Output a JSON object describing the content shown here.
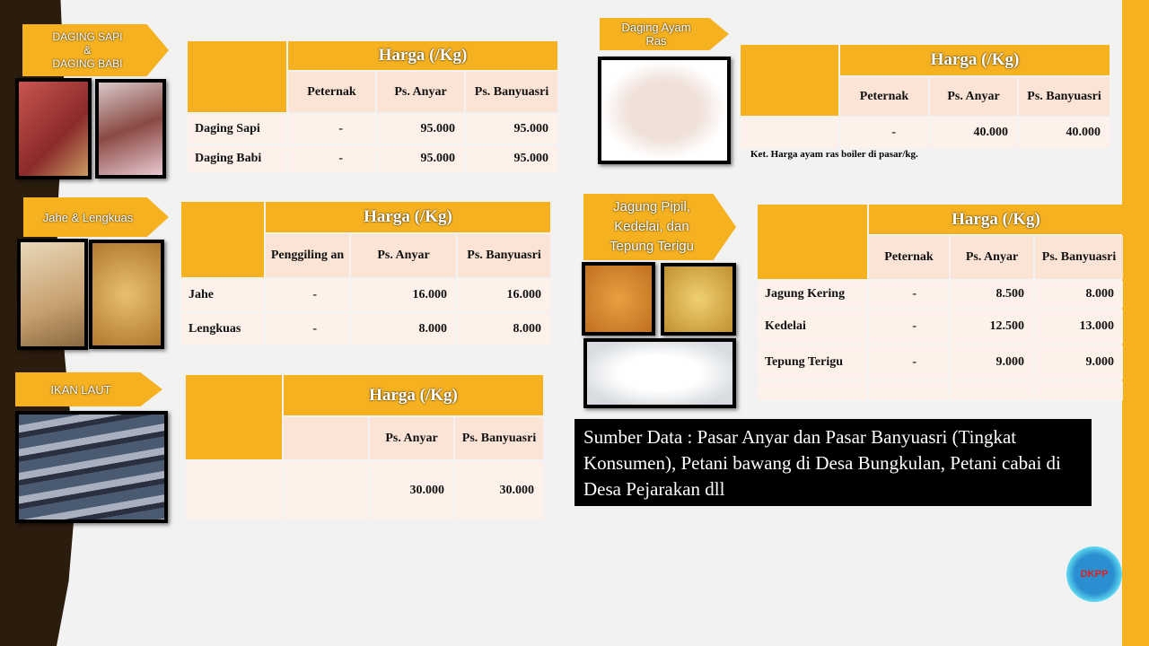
{
  "colors": {
    "accent": "#f5b120",
    "header_sub": "#fbe4d5",
    "row": "#fdf1ea",
    "dark": "#2b1d0e"
  },
  "labels": {
    "sapi_babi": "DAGING SAPI\n&\nDAGING BABI",
    "ayam": "Daging Ayam\nRas",
    "jahe": "Jahe & Lengkuas",
    "jagung": "Jagung Pipil,\nKedelai, dan\nTepung Terigu",
    "ikan": "IKAN LAUT"
  },
  "tables": {
    "sapi": {
      "harga": "Harga (/Kg)",
      "cols": [
        "Peternak",
        "Ps. Anyar",
        "Ps. Banyuasri"
      ],
      "rows": [
        [
          "Daging Sapi",
          "-",
          "95.000",
          "95.000"
        ],
        [
          "Daging Babi",
          "-",
          "95.000",
          "95.000"
        ]
      ]
    },
    "jahe": {
      "harga": "Harga (/Kg)",
      "cols": [
        "Penggiling an",
        "Ps. Anyar",
        "Ps. Banyuasri"
      ],
      "rows": [
        [
          "Jahe",
          "-",
          "16.000",
          "16.000"
        ],
        [
          "Lengkuas",
          "-",
          "8.000",
          "8.000"
        ]
      ]
    },
    "ikan": {
      "harga": "Harga (/Kg)",
      "cols": [
        "",
        "Ps. Anyar",
        "Ps. Banyuasri"
      ],
      "rows": [
        [
          "",
          "",
          "30.000",
          "30.000"
        ]
      ]
    },
    "ayam": {
      "harga": "Harga (/Kg)",
      "cols": [
        "Peternak",
        "Ps. Anyar",
        "Ps. Banyuasri"
      ],
      "rows": [
        [
          "",
          "-",
          "40.000",
          "40.000"
        ]
      ]
    },
    "jagung": {
      "harga": "Harga (/Kg)",
      "cols": [
        "Peternak",
        "Ps. Anyar",
        "Ps. Banyuasri"
      ],
      "rows": [
        [
          "Jagung Kering",
          "-",
          "8.500",
          "8.000"
        ],
        [
          "Kedelai",
          "-",
          "12.500",
          "13.000"
        ],
        [
          "Tepung Terigu",
          "-",
          "9.000",
          "9.000"
        ]
      ]
    }
  },
  "ayam_note": "Ket. Harga ayam ras boiler di pasar/kg.",
  "source": "Sumber Data : Pasar Anyar dan Pasar Banyuasri (Tingkat Konsumen), Petani bawang di Desa Bungkulan, Petani cabai di Desa Pejarakan dll",
  "logo": "DKPP"
}
